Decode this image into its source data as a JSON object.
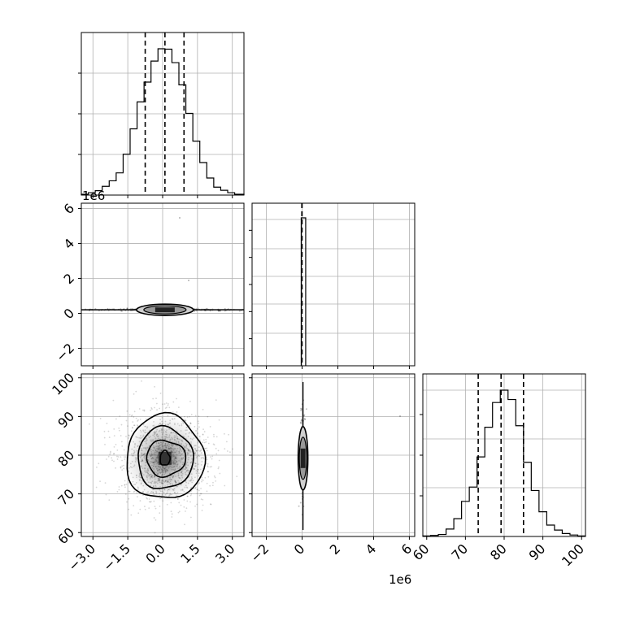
{
  "chart_data": {
    "type": "corner",
    "grid": true,
    "parameters": 3,
    "multiplier_label": "1e6",
    "panels": [
      {
        "id": "hist-p0",
        "type": "histogram",
        "x_ticks": [
          "−3.0",
          "−1.5",
          "0.0",
          "1.5",
          "3.0"
        ],
        "xlim": [
          -3.5,
          3.5
        ],
        "bin_edges": [
          -3.5,
          -3.2,
          -2.9,
          -2.6,
          -2.3,
          -2.0,
          -1.7,
          -1.4,
          -1.1,
          -0.8,
          -0.5,
          -0.2,
          0.1,
          0.4,
          0.7,
          1.0,
          1.3,
          1.6,
          1.9,
          2.2,
          2.5,
          2.8,
          3.1,
          3.5
        ],
        "counts": [
          2,
          6,
          11,
          22,
          36,
          56,
          103,
          167,
          235,
          285,
          338,
          369,
          368,
          334,
          278,
          206,
          136,
          82,
          43,
          20,
          12,
          6,
          2
        ],
        "quantiles": [
          -0.75,
          0.1,
          0.92
        ]
      },
      {
        "id": "hist-p1",
        "type": "histogram",
        "x_ticks": [
          "−2",
          "0",
          "2",
          "4",
          "6"
        ],
        "xlim": [
          -2.8,
          6.3
        ],
        "bin_edges": [
          -0.05,
          0.2
        ],
        "counts": [
          5000
        ],
        "quantiles": [
          -0.02,
          -0.01,
          0.0
        ]
      },
      {
        "id": "hist-p2",
        "type": "histogram",
        "x_ticks": [
          "60",
          "70",
          "80",
          "90",
          "100"
        ],
        "xlim": [
          59,
          101
        ],
        "bin_edges": [
          59,
          61,
          63,
          65,
          67,
          69,
          71,
          73,
          75,
          77,
          79,
          81,
          83,
          85,
          87,
          89,
          91,
          93,
          95,
          97,
          99,
          101
        ],
        "counts": [
          1,
          2,
          4,
          15,
          36,
          71,
          100,
          161,
          221,
          271,
          296,
          277,
          224,
          150,
          93,
          50,
          23,
          13,
          6,
          3,
          1
        ],
        "quantiles": [
          73.3,
          79.2,
          85.0
        ]
      },
      {
        "id": "scatter-p0-p1",
        "type": "contour",
        "y_ticks": [
          "−2",
          "0",
          "2",
          "4",
          "6"
        ],
        "ylim": [
          -3,
          6.3
        ],
        "center": [
          0.1,
          0.2
        ]
      },
      {
        "id": "scatter-p0-p2",
        "type": "contour",
        "y_ticks": [
          "60",
          "70",
          "80",
          "90",
          "100"
        ],
        "ylim": [
          59,
          101
        ],
        "center": [
          0.1,
          79.2
        ]
      },
      {
        "id": "scatter-p1-p2",
        "type": "contour",
        "center": [
          0.05,
          79.2
        ]
      }
    ],
    "xlabel": "",
    "ylabel": "",
    "title": ""
  }
}
